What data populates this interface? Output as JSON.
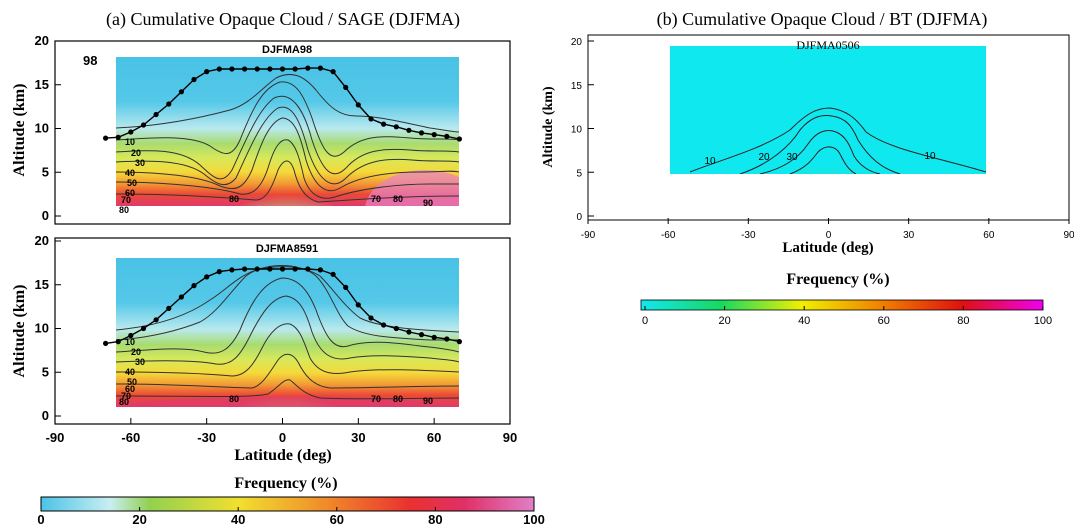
{
  "panels": {
    "a": {
      "title": "(a) Cumulative Opaque Cloud / SAGE (DJFMA)"
    },
    "b": {
      "title": "(b) Cumulative Opaque Cloud / BT (DJFMA)"
    }
  },
  "colorbars": {
    "a": {
      "title": "Frequency (%)",
      "ticks": [
        "0",
        "20",
        "40",
        "60",
        "80",
        "100"
      ]
    },
    "b": {
      "title": "Frequency (%)",
      "ticks": [
        "0",
        "20",
        "40",
        "60",
        "80",
        "100"
      ]
    }
  },
  "colors": {
    "scale_a": [
      "#4cc3e6",
      "#c8eef2",
      "#92d050",
      "#f0e030",
      "#f08a2a",
      "#ea3030",
      "#e03068",
      "#e080c8"
    ],
    "scale_b": [
      "#10e8f0",
      "#18d860",
      "#f0f000",
      "#f08000",
      "#e01010",
      "#f000f0"
    ]
  },
  "chart_data": [
    {
      "type": "heatmap",
      "label": "98",
      "subtitle": "DJFMA98",
      "xlabel": "",
      "ylabel": "Altitude (km)",
      "xlim": [
        -90,
        90
      ],
      "ylim": [
        0,
        20
      ],
      "xticks": [
        "-90",
        "-60",
        "-30",
        "0",
        "30",
        "60",
        "90"
      ],
      "yticks": [
        "0",
        "5",
        "10",
        "15",
        "20"
      ],
      "colorbar": {
        "range": [
          0,
          100
        ],
        "unit": "%"
      },
      "contour_labels": [
        "10",
        "20",
        "30",
        "40",
        "50",
        "60",
        "70",
        "80",
        "80",
        "70",
        "80",
        "90"
      ],
      "tropopause": {
        "x": [
          -70,
          -65,
          -60,
          -55,
          -50,
          -45,
          -40,
          -35,
          -30,
          -25,
          -20,
          -15,
          -10,
          -5,
          0,
          5,
          10,
          15,
          20,
          25,
          30,
          35,
          40,
          45,
          50,
          55,
          60,
          65,
          70
        ],
        "y": [
          8.9,
          9.0,
          9.6,
          10.4,
          11.6,
          12.8,
          14.2,
          15.6,
          16.5,
          16.8,
          16.8,
          16.8,
          16.8,
          16.8,
          16.8,
          16.8,
          16.9,
          16.9,
          16.5,
          14.7,
          12.7,
          11.1,
          10.5,
          10.2,
          9.8,
          9.5,
          9.3,
          9.1,
          8.8
        ]
      }
    },
    {
      "type": "heatmap",
      "subtitle": "DJFMA8591",
      "xlabel": "Latitude (deg)",
      "ylabel": "Altitude (km)",
      "xlim": [
        -90,
        90
      ],
      "ylim": [
        0,
        20
      ],
      "xticks": [
        "-90",
        "-60",
        "-30",
        "0",
        "30",
        "60",
        "90"
      ],
      "yticks": [
        "0",
        "5",
        "10",
        "15",
        "20"
      ],
      "colorbar": {
        "range": [
          0,
          100
        ],
        "unit": "%"
      },
      "contour_labels": [
        "10",
        "20",
        "30",
        "40",
        "50",
        "60",
        "70",
        "80",
        "80",
        "70",
        "80",
        "90"
      ],
      "tropopause": {
        "x": [
          -70,
          -65,
          -60,
          -55,
          -50,
          -45,
          -40,
          -35,
          -30,
          -25,
          -20,
          -15,
          -10,
          -5,
          0,
          5,
          10,
          15,
          20,
          25,
          30,
          35,
          40,
          45,
          50,
          55,
          60,
          65,
          70
        ],
        "y": [
          8.3,
          8.5,
          9.2,
          10.0,
          11.0,
          12.3,
          13.6,
          14.9,
          15.9,
          16.5,
          16.7,
          16.8,
          16.8,
          16.8,
          16.8,
          16.8,
          16.8,
          16.7,
          16.2,
          14.7,
          12.7,
          11.2,
          10.4,
          10.0,
          9.6,
          9.3,
          9.0,
          8.8,
          8.5
        ]
      }
    },
    {
      "type": "heatmap",
      "subtitle": "DJFMA0506",
      "xlabel": "Latitude (deg)",
      "ylabel": "Altitude (km)",
      "xlim": [
        -90,
        90
      ],
      "ylim": [
        0,
        20
      ],
      "xticks": [
        "-90",
        "-60",
        "-30",
        "0",
        "30",
        "60",
        "90"
      ],
      "yticks": [
        "0",
        "5",
        "10",
        "15",
        "20"
      ],
      "colorbar": {
        "range": [
          0,
          100
        ],
        "unit": "%"
      },
      "contour_labels": [
        "10",
        "20",
        "30",
        "10"
      ]
    }
  ]
}
